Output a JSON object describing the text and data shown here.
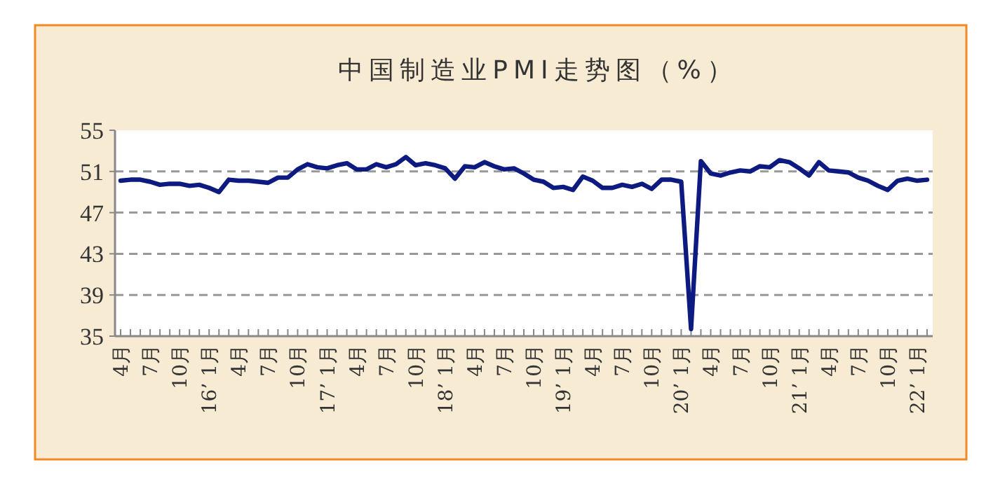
{
  "chart_data": {
    "type": "line",
    "title": "中国制造业PMI走势图（%）",
    "categories": [
      "4月",
      null,
      null,
      "7月",
      null,
      null,
      "10月",
      null,
      null,
      "16’ 1月",
      null,
      null,
      "4月",
      null,
      null,
      "7月",
      null,
      null,
      "10月",
      null,
      null,
      "17’ 1月",
      null,
      null,
      "4月",
      null,
      null,
      "7月",
      null,
      null,
      "10月",
      null,
      null,
      "18’ 1月",
      null,
      null,
      "4月",
      null,
      null,
      "7月",
      null,
      null,
      "10月",
      null,
      null,
      "19’ 1月",
      null,
      null,
      "4月",
      null,
      null,
      "7月",
      null,
      null,
      "10月",
      null,
      null,
      "20’ 1月",
      null,
      null,
      "4月",
      null,
      null,
      "7月",
      null,
      null,
      "10月",
      null,
      null,
      "21’ 1月",
      null,
      null,
      "4月",
      null,
      null,
      "7月",
      null,
      null,
      "10月",
      null,
      null,
      "22’ 1月",
      null
    ],
    "series": [
      {
        "color": "#0d1a80",
        "values": [
          50.1,
          50.2,
          50.2,
          50.0,
          49.7,
          49.8,
          49.8,
          49.6,
          49.7,
          49.4,
          49.0,
          50.2,
          50.1,
          50.1,
          50.0,
          49.9,
          50.4,
          50.4,
          51.2,
          51.7,
          51.4,
          51.3,
          51.6,
          51.8,
          51.2,
          51.2,
          51.7,
          51.4,
          51.7,
          52.4,
          51.6,
          51.8,
          51.6,
          51.3,
          50.3,
          51.5,
          51.4,
          51.9,
          51.5,
          51.2,
          51.3,
          50.8,
          50.2,
          50.0,
          49.4,
          49.5,
          49.2,
          50.5,
          50.1,
          49.4,
          49.4,
          49.7,
          49.5,
          49.8,
          49.3,
          50.2,
          50.2,
          50.0,
          35.7,
          52.0,
          50.8,
          50.6,
          50.9,
          51.1,
          51.0,
          51.5,
          51.4,
          52.1,
          51.9,
          51.3,
          50.6,
          51.9,
          51.1,
          51.0,
          50.9,
          50.4,
          50.1,
          49.6,
          49.2,
          50.1,
          50.3,
          50.1,
          50.2
        ]
      }
    ],
    "ylim": [
      35,
      55
    ],
    "yticks": [
      35,
      39,
      43,
      47,
      51,
      55
    ],
    "grid": "y",
    "line_style": "solid",
    "marker": "none"
  }
}
